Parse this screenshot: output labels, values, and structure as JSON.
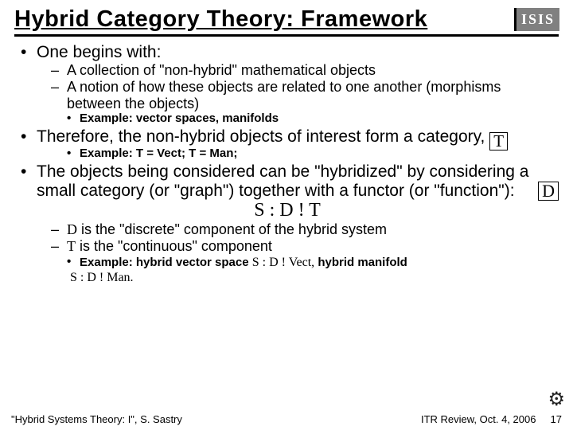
{
  "title": "Hybrid Category Theory: Framework",
  "logo_text": "ISIS",
  "b1": {
    "lead": "One begins with:",
    "sub1": "A collection of \"non-hybrid\" mathematical objects",
    "sub2": "A notion of how these objects are related to one another (morphisms between the objects)",
    "ex": "Example: vector spaces, manifolds"
  },
  "b2": {
    "lead_a": "Therefore, the non-hybrid objects of interest form a category, ",
    "lead_T": "T",
    "ex": "Example: T = Vect; T = Man;"
  },
  "b3": {
    "lead": "The objects being considered can be \"hybridized\" by considering a small category (or \"graph\") together with a functor (or \"function\"):",
    "D_box": "D",
    "functor": "S : D !  T",
    "sub1_sym": "D",
    "sub1_txt": " is the \"discrete\" component of the hybrid system",
    "sub2_sym": "T",
    "sub2_txt": " is the \"continuous\" component",
    "ex_a": "Example: hybrid vector space",
    "ex_b": "S : D !  Vect,",
    "ex_c": " hybrid manifold",
    "ex_d": "S : D !  Man."
  },
  "footer_left": "\"Hybrid Systems Theory: I\", S. Sastry",
  "footer_right": "ITR Review, Oct. 4, 2006",
  "page": "17"
}
